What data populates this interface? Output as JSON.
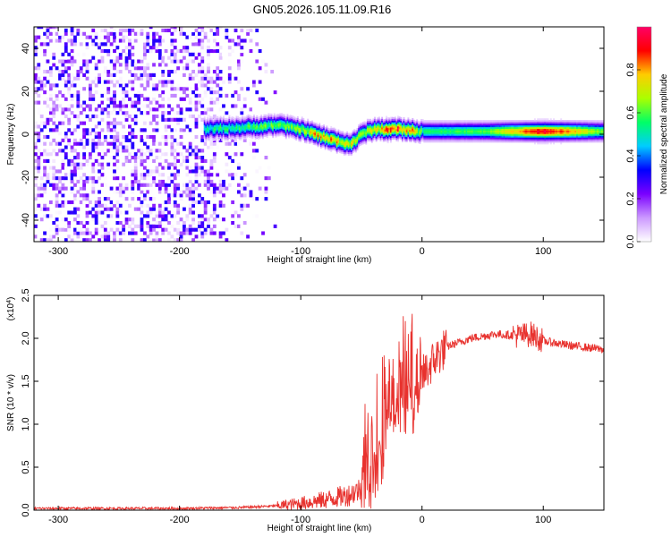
{
  "figure_title": "GN05.2026.105.11.09.R16",
  "chart_data": [
    {
      "type": "heatmap",
      "xlabel": "Height of straight line (km)",
      "ylabel": "Frequency (Hz)",
      "xlim": [
        -320,
        150
      ],
      "ylim": [
        -50,
        50
      ],
      "xticks": [
        -300,
        -200,
        -100,
        0,
        100
      ],
      "yticks": [
        -40,
        -20,
        0,
        20,
        40
      ],
      "colorbar": {
        "label": "Normalized spectral amplitude",
        "range": [
          0,
          1
        ],
        "ticks": [
          "0.0",
          "0.2",
          "0.4",
          "0.6",
          "0.8"
        ],
        "colors": [
          "#ffffff",
          "#cc99ff",
          "#7a00ff",
          "#0000ff",
          "#00ccff",
          "#00ff66",
          "#aaff00",
          "#ffcc00",
          "#ff0000",
          "#ff0066"
        ]
      },
      "ridge": {
        "x": [
          -180,
          -160,
          -140,
          -120,
          -100,
          -90,
          -80,
          -70,
          -60,
          -55,
          -50,
          -40,
          -30,
          -20,
          -10,
          0,
          50,
          100,
          150
        ],
        "center_hz": [
          2,
          2.5,
          3,
          4,
          2,
          0,
          -2,
          -3.5,
          -5,
          -3,
          0,
          2,
          2,
          2,
          1.5,
          1,
          1,
          1,
          1
        ],
        "amplitude": [
          0.5,
          0.55,
          0.55,
          0.6,
          0.65,
          0.75,
          0.8,
          0.75,
          0.7,
          0.7,
          0.6,
          0.75,
          0.8,
          0.9,
          0.85,
          0.55,
          0.6,
          0.95,
          0.6
        ]
      },
      "noise_region_km": [
        -320,
        -120
      ]
    },
    {
      "type": "line",
      "xlabel": "Height of straight line (km)",
      "ylabel": "SNR (10 * v/v)",
      "yscale_note": "(x10^4)",
      "xlim": [
        -320,
        150
      ],
      "ylim": [
        0,
        2.5
      ],
      "xticks": [
        -300,
        -200,
        -100,
        0,
        100
      ],
      "yticks": [
        "0.0",
        "0.5",
        "1.0",
        "1.5",
        "2.0",
        "2.5"
      ],
      "line_color": "#e8322e",
      "series": [
        {
          "x": [
            -320,
            -250,
            -200,
            -150,
            -120,
            -100,
            -80,
            -70,
            -60,
            -50,
            -40,
            -35,
            -30,
            -25,
            -20,
            -15,
            -10,
            -5,
            0,
            10,
            20,
            40,
            60,
            80,
            90,
            100,
            120,
            150
          ],
          "values": [
            0.02,
            0.02,
            0.02,
            0.03,
            0.05,
            0.08,
            0.12,
            0.15,
            0.18,
            0.25,
            0.5,
            0.7,
            1.0,
            1.1,
            1.2,
            1.3,
            1.35,
            1.45,
            1.55,
            1.75,
            1.9,
            2.0,
            2.05,
            2.03,
            2.05,
            1.97,
            1.92,
            1.87
          ]
        }
      ]
    }
  ]
}
